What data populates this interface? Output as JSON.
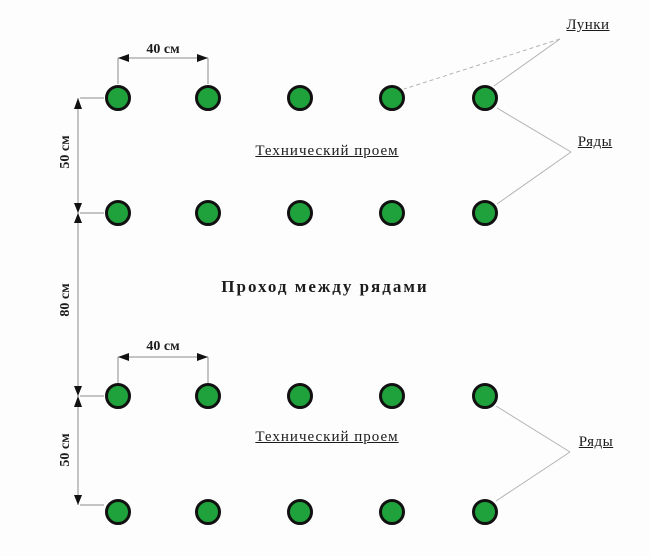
{
  "diagram": {
    "callouts": {
      "holes_label": "Лунки",
      "rows_label_top": "Ряды",
      "rows_label_bottom": "Ряды"
    },
    "notes": {
      "tech_gap_top": "Технический проем",
      "tech_gap_bottom": "Технический проем",
      "passage": "Проход между рядами"
    },
    "dimensions": {
      "hole_spacing_top": "40 см",
      "hole_spacing_bottom": "40 см",
      "row_gap_top": "50 см",
      "row_gap_bottom": "50 см",
      "aisle_gap": "80 см"
    },
    "grid": {
      "rows": 4,
      "holes_per_row": 5
    },
    "colors": {
      "hole_fill": "#1fa23c",
      "hole_border": "#111111",
      "leader_line": "#b3b3b3",
      "dimension_line": "#8a8a8a",
      "arrow": "#111111",
      "text": "#1c1c1c",
      "background": "#fdfdfd"
    }
  }
}
